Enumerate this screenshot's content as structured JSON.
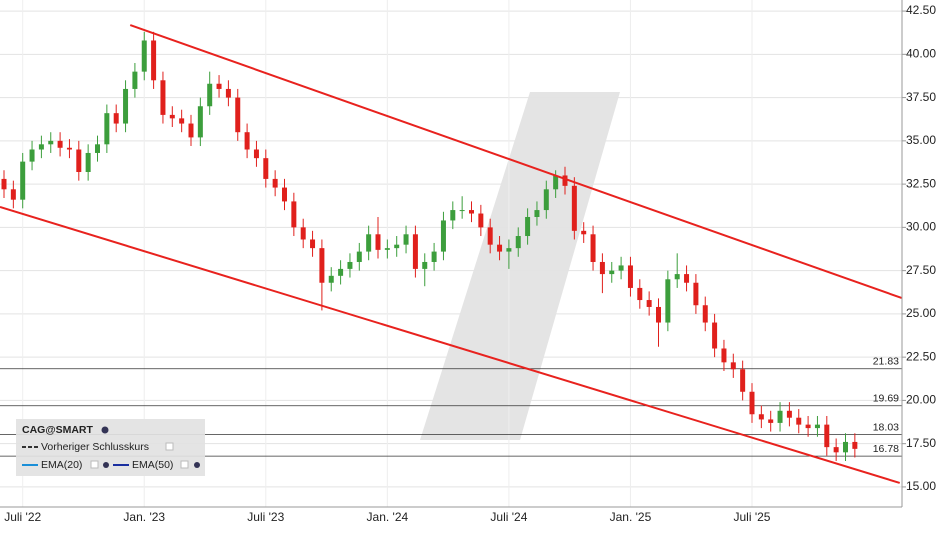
{
  "chart_data": {
    "type": "candlestick",
    "categories": [
      null,
      null,
      "Juli '22",
      null,
      null,
      null,
      null,
      null,
      null,
      null,
      null,
      null,
      null,
      null,
      null,
      "Jan. '23",
      null,
      null,
      null,
      null,
      null,
      null,
      null,
      null,
      null,
      null,
      null,
      null,
      "Juli '23",
      null,
      null,
      null,
      null,
      null,
      null,
      null,
      null,
      null,
      null,
      null,
      null,
      "Jan. '24",
      null,
      null,
      null,
      null,
      null,
      null,
      null,
      null,
      null,
      null,
      null,
      null,
      "Juli '24",
      null,
      null,
      null,
      null,
      null,
      null,
      null,
      null,
      null,
      null,
      null,
      null,
      "Jan. '25",
      null,
      null,
      null,
      null,
      null,
      null,
      null,
      null,
      null,
      null,
      null,
      null,
      "Juli '25",
      null,
      null,
      null,
      null,
      null,
      null,
      null,
      null,
      null,
      null,
      null
    ],
    "open": [
      32.8,
      32.2,
      31.6,
      33.8,
      34.5,
      34.8,
      35.0,
      34.6,
      34.5,
      33.2,
      34.3,
      34.8,
      36.6,
      36.0,
      38.0,
      39.0,
      40.8,
      38.5,
      36.5,
      36.3,
      36.0,
      35.2,
      37.0,
      38.3,
      38.0,
      37.5,
      35.5,
      34.5,
      34.0,
      32.8,
      32.3,
      31.5,
      30.0,
      29.3,
      28.8,
      26.8,
      27.2,
      27.6,
      28.0,
      28.6,
      29.6,
      28.7,
      28.8,
      29.0,
      29.6,
      27.6,
      28.0,
      28.6,
      30.4,
      31.0,
      31.0,
      30.8,
      30.0,
      29.0,
      28.6,
      28.8,
      29.5,
      30.6,
      31.0,
      32.2,
      33.0,
      32.4,
      29.8,
      29.6,
      28.0,
      27.3,
      27.5,
      27.8,
      26.5,
      25.8,
      25.4,
      24.5,
      27.0,
      27.3,
      26.8,
      25.5,
      24.5,
      23.0,
      22.2,
      21.8,
      20.5,
      19.2,
      18.9,
      18.7,
      19.4,
      19.0,
      18.6,
      18.4,
      18.6,
      17.3,
      17.0,
      17.6
    ],
    "high": [
      33.3,
      32.7,
      34.3,
      35.0,
      35.3,
      35.5,
      35.5,
      35.1,
      35.0,
      34.8,
      35.3,
      37.1,
      37.1,
      38.5,
      39.5,
      41.3,
      41.3,
      39.0,
      37.0,
      36.8,
      36.5,
      37.5,
      39.0,
      38.8,
      38.5,
      38.0,
      36.0,
      35.0,
      34.5,
      33.3,
      32.8,
      32.0,
      30.5,
      29.8,
      29.3,
      27.7,
      28.1,
      28.5,
      29.1,
      30.1,
      30.6,
      29.3,
      29.5,
      30.1,
      30.1,
      28.5,
      29.1,
      30.9,
      31.5,
      31.8,
      31.5,
      31.3,
      30.5,
      29.5,
      29.3,
      30.0,
      31.1,
      31.5,
      32.7,
      33.3,
      33.5,
      32.9,
      30.3,
      30.1,
      28.5,
      28.0,
      28.3,
      28.3,
      27.0,
      26.3,
      25.9,
      27.5,
      28.5,
      27.8,
      27.3,
      26.0,
      25.0,
      23.5,
      22.7,
      22.3,
      21.0,
      19.7,
      19.4,
      19.9,
      19.9,
      19.5,
      19.1,
      19.1,
      19.1,
      17.8,
      18.1,
      18.1
    ],
    "low": [
      31.7,
      31.1,
      31.1,
      33.3,
      34.0,
      34.3,
      34.1,
      34.0,
      32.7,
      32.7,
      33.8,
      34.3,
      35.5,
      35.5,
      37.5,
      38.5,
      38.0,
      36.0,
      35.8,
      35.5,
      34.7,
      34.7,
      36.5,
      37.5,
      37.0,
      35.0,
      34.0,
      33.5,
      32.3,
      31.8,
      31.0,
      29.5,
      28.8,
      28.3,
      25.2,
      26.3,
      26.7,
      27.1,
      27.5,
      28.1,
      28.2,
      28.2,
      28.3,
      28.5,
      27.1,
      26.6,
      27.5,
      28.1,
      29.9,
      30.5,
      30.3,
      29.5,
      28.5,
      28.1,
      27.6,
      28.3,
      29.0,
      30.1,
      30.5,
      31.7,
      31.9,
      29.3,
      29.1,
      27.5,
      26.2,
      26.8,
      27.0,
      26.0,
      25.3,
      24.9,
      23.1,
      24.0,
      26.5,
      26.3,
      25.0,
      24.0,
      22.5,
      21.7,
      21.3,
      20.0,
      18.7,
      18.4,
      18.2,
      18.2,
      18.5,
      18.1,
      17.9,
      17.9,
      16.8,
      16.5,
      16.5,
      16.7
    ],
    "close": [
      32.2,
      31.6,
      33.8,
      34.5,
      34.8,
      35.0,
      34.6,
      34.5,
      33.2,
      34.3,
      34.8,
      36.6,
      36.0,
      38.0,
      39.0,
      40.8,
      38.5,
      36.5,
      36.3,
      36.0,
      35.2,
      37.0,
      38.3,
      38.0,
      37.5,
      35.5,
      34.5,
      34.0,
      32.8,
      32.3,
      31.5,
      30.0,
      29.3,
      28.8,
      26.8,
      27.2,
      27.6,
      28.0,
      28.6,
      29.6,
      28.7,
      28.8,
      29.0,
      29.6,
      27.6,
      28.0,
      28.6,
      30.4,
      31.0,
      31.0,
      30.8,
      30.0,
      29.0,
      28.6,
      28.8,
      29.5,
      30.6,
      31.0,
      32.2,
      33.0,
      32.4,
      29.8,
      29.6,
      28.0,
      27.3,
      27.5,
      27.8,
      26.5,
      25.8,
      25.4,
      24.5,
      27.0,
      27.3,
      26.8,
      25.5,
      24.5,
      23.0,
      22.2,
      21.8,
      20.5,
      19.2,
      18.9,
      18.7,
      19.4,
      19.0,
      18.6,
      18.4,
      18.6,
      17.3,
      17.0,
      17.6,
      17.2
    ],
    "up_color": "#3c9e3c",
    "down_color": "#e0201c",
    "ylim": [
      13.84,
      43.14
    ],
    "yticks": [
      {
        "value": 15,
        "label": "15.00"
      },
      {
        "value": 17.5,
        "label": "17.50"
      },
      {
        "value": 20,
        "label": "20.00"
      },
      {
        "value": 22.5,
        "label": "22.50"
      },
      {
        "value": 25,
        "label": "25.00"
      },
      {
        "value": 27.5,
        "label": "27.50"
      },
      {
        "value": 30,
        "label": "30.00"
      },
      {
        "value": 32.5,
        "label": "32.50"
      },
      {
        "value": 35,
        "label": "35.00"
      },
      {
        "value": 37.5,
        "label": "37.50"
      },
      {
        "value": 40,
        "label": "40.00"
      },
      {
        "value": 42.5,
        "label": "42.50"
      }
    ],
    "grid": true,
    "hlines": [
      21.83,
      19.69,
      18.03,
      16.78
    ],
    "trendlines": [
      {
        "color": "#e8221e",
        "x": [
          13.5,
          96.0
        ],
        "y": [
          41.69,
          25.92
        ]
      },
      {
        "color": "#e8221e",
        "x": [
          -0.43,
          95.8
        ],
        "y": [
          31.18,
          15.23
        ]
      }
    ],
    "legend_position": "bottom-left",
    "legend_title": "CAG@SMART",
    "legend_items": [
      {
        "name": "Vorheriger Schlusskurs",
        "color": "#333333",
        "dashed": true
      },
      {
        "name": "EMA(20)",
        "color": "#1a8fd8",
        "dashed": false
      },
      {
        "name": "EMA(50)",
        "color": "#1a2fa0",
        "dashed": false
      }
    ]
  }
}
